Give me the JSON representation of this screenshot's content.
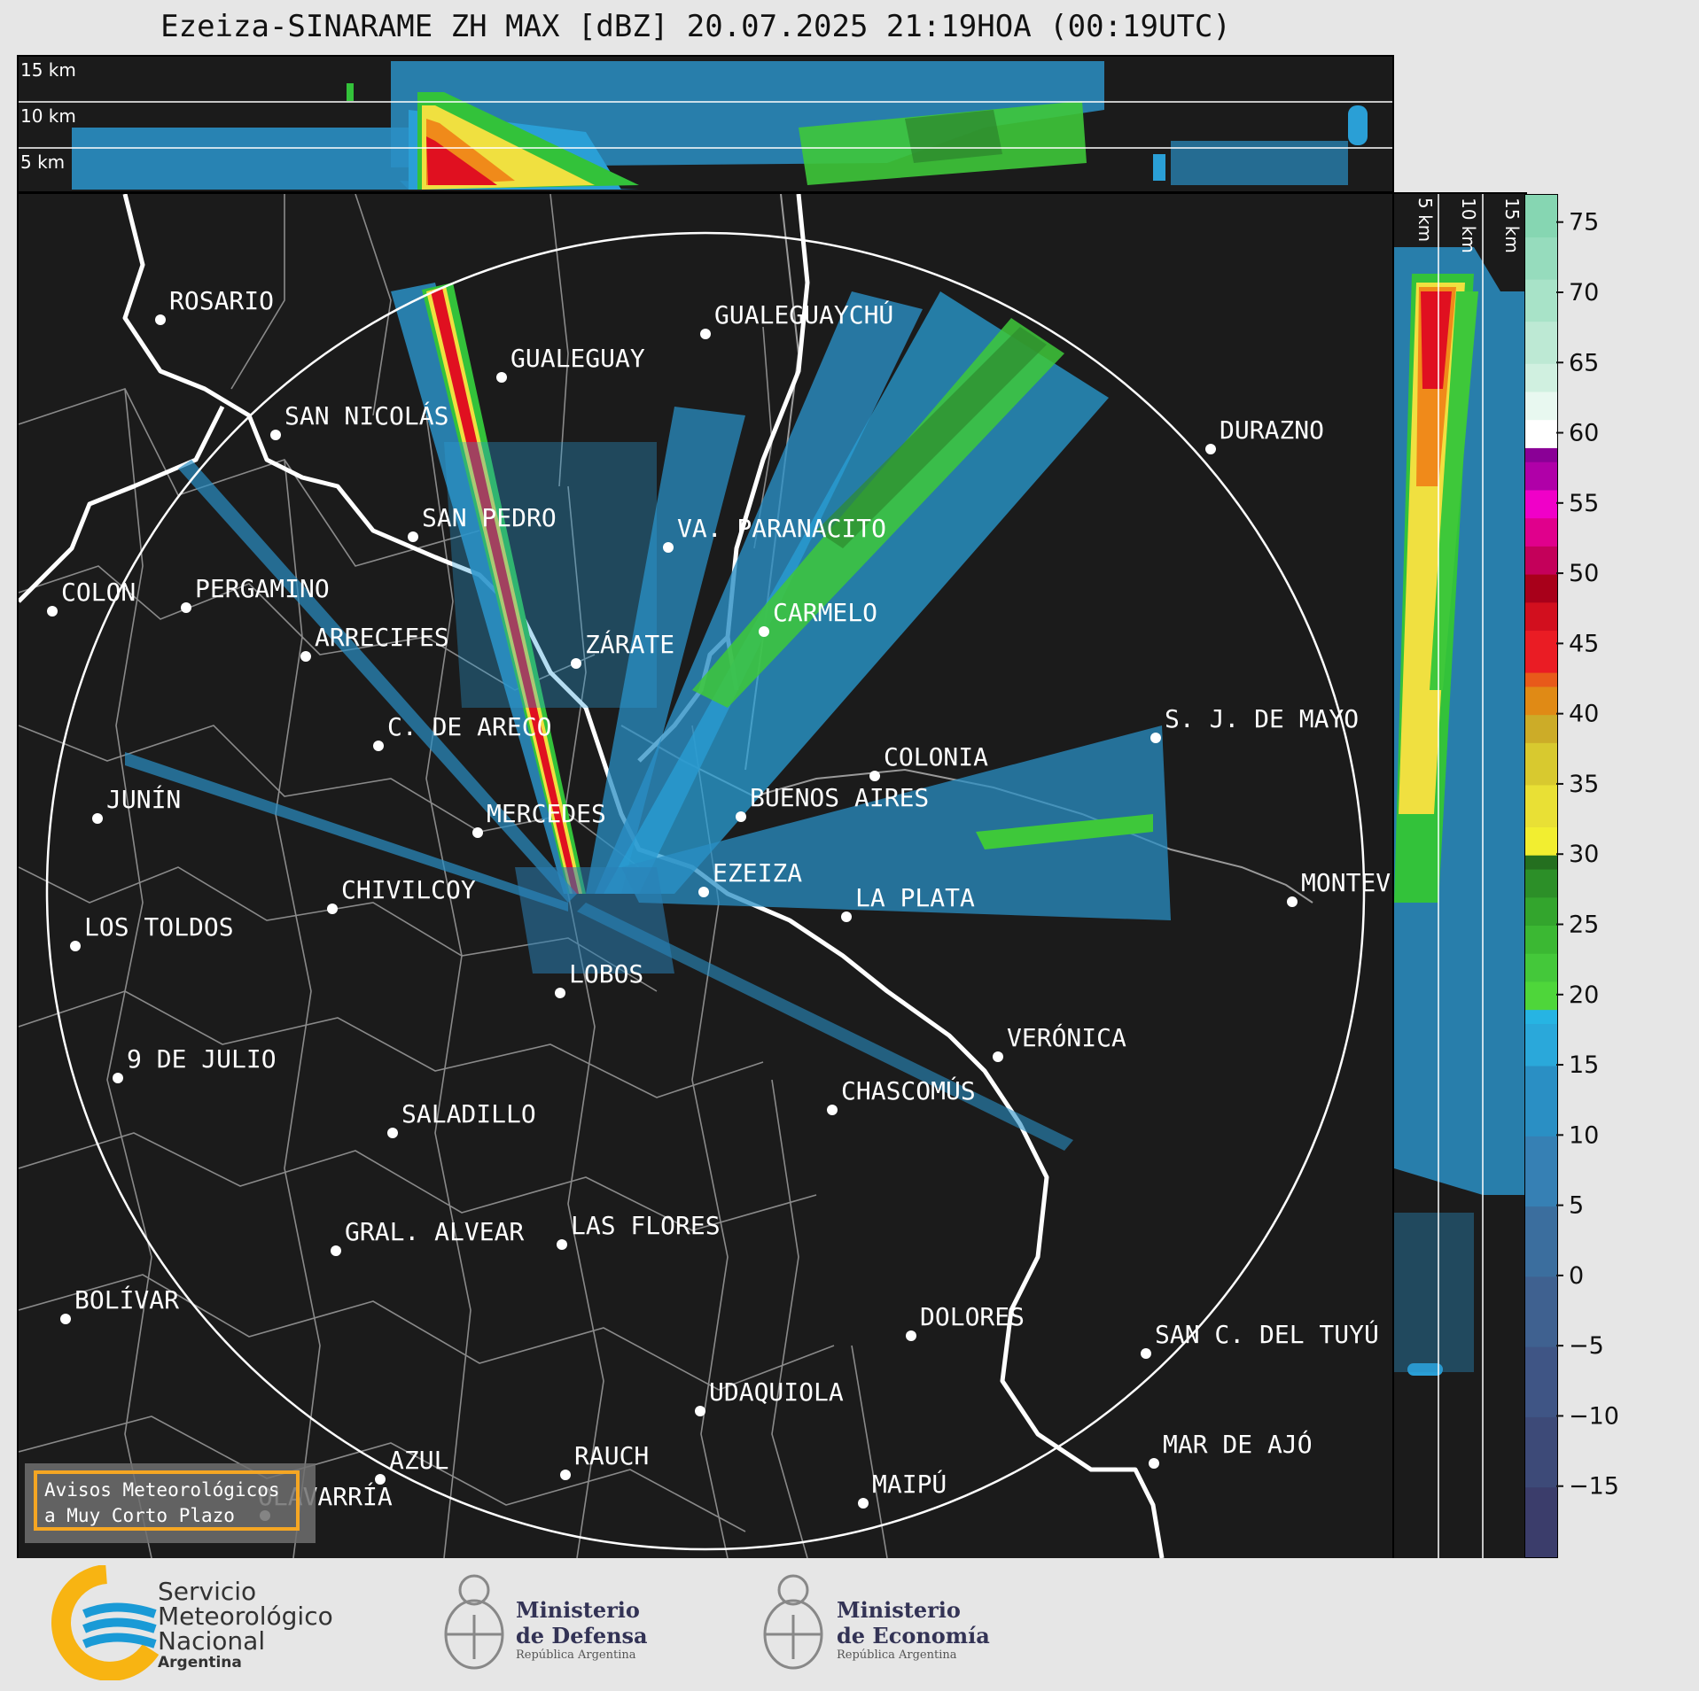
{
  "title": "Ezeiza-SINARAME ZH MAX [dBZ] 20.07.2025 21:19HOA (00:19UTC)",
  "top_xsec": {
    "labels": [
      "15 km",
      "10 km",
      "5 km"
    ]
  },
  "side_xsec": {
    "labels": [
      "5 km",
      "10 km",
      "15 km"
    ]
  },
  "colorbar": {
    "ticks": [
      "75",
      "70",
      "65",
      "60",
      "55",
      "50",
      "45",
      "40",
      "35",
      "30",
      "25",
      "20",
      "15",
      "10",
      "5",
      "0",
      "−5",
      "−10",
      "−15"
    ],
    "tick_values": [
      75,
      70,
      65,
      60,
      55,
      50,
      45,
      40,
      35,
      30,
      25,
      20,
      15,
      10,
      5,
      0,
      -5,
      -10,
      -15
    ],
    "range": [
      -20,
      77
    ]
  },
  "cities": [
    {
      "name": "ROSARIO"
    },
    {
      "name": "GUALEGUAYCHÚ"
    },
    {
      "name": "GUALEGUAY"
    },
    {
      "name": "SAN NICOLÁS"
    },
    {
      "name": "DURAZNO"
    },
    {
      "name": "SAN PEDRO"
    },
    {
      "name": "VA. PARANACITO"
    },
    {
      "name": "COLON"
    },
    {
      "name": "PERGAMINO"
    },
    {
      "name": "CARMELO"
    },
    {
      "name": "ARRECIFES"
    },
    {
      "name": "ZÁRATE"
    },
    {
      "name": "S. J. DE MAYO"
    },
    {
      "name": "C. DE ARECO"
    },
    {
      "name": "COLONIA"
    },
    {
      "name": "JUNÍN"
    },
    {
      "name": "BUENOS AIRES"
    },
    {
      "name": "MERCEDES"
    },
    {
      "name": "EZEIZA"
    },
    {
      "name": "MONTEV"
    },
    {
      "name": "CHIVILCOY"
    },
    {
      "name": "LA PLATA"
    },
    {
      "name": "LOS TOLDOS"
    },
    {
      "name": "LOBOS"
    },
    {
      "name": "VERÓNICA"
    },
    {
      "name": "9 DE JULIO"
    },
    {
      "name": "CHASCOMÚS"
    },
    {
      "name": "SALADILLO"
    },
    {
      "name": "GRAL. ALVEAR"
    },
    {
      "name": "LAS FLORES"
    },
    {
      "name": "BOLÍVAR"
    },
    {
      "name": "DOLORES"
    },
    {
      "name": "SAN C. DEL TUYÚ"
    },
    {
      "name": "UDAQUIOLA"
    },
    {
      "name": "MAR DE AJÓ"
    },
    {
      "name": "AZUL"
    },
    {
      "name": "RAUCH"
    },
    {
      "name": "OLAVARRÍA"
    },
    {
      "name": "MAIPÚ"
    }
  ],
  "notice": {
    "line1": "Avisos Meteorológicos",
    "line2": "a Muy Corto Plazo"
  },
  "footer": {
    "smn_line1": "Servicio",
    "smn_line2": "Meteorológico",
    "smn_line3": "Nacional",
    "smn_line4": "Argentina",
    "defensa_line1": "Ministerio",
    "defensa_line2": "de Defensa",
    "defensa_line3": "República Argentina",
    "economia_line1": "Ministerio",
    "economia_line2": "de Economía",
    "economia_line3": "República Argentina"
  },
  "colors": {
    "background": "#1b1b1b",
    "page": "#e6e6e6",
    "notice_border": "#f5a623",
    "smn_blue": "#1a9ad6",
    "smn_yellow": "#f8b412"
  }
}
